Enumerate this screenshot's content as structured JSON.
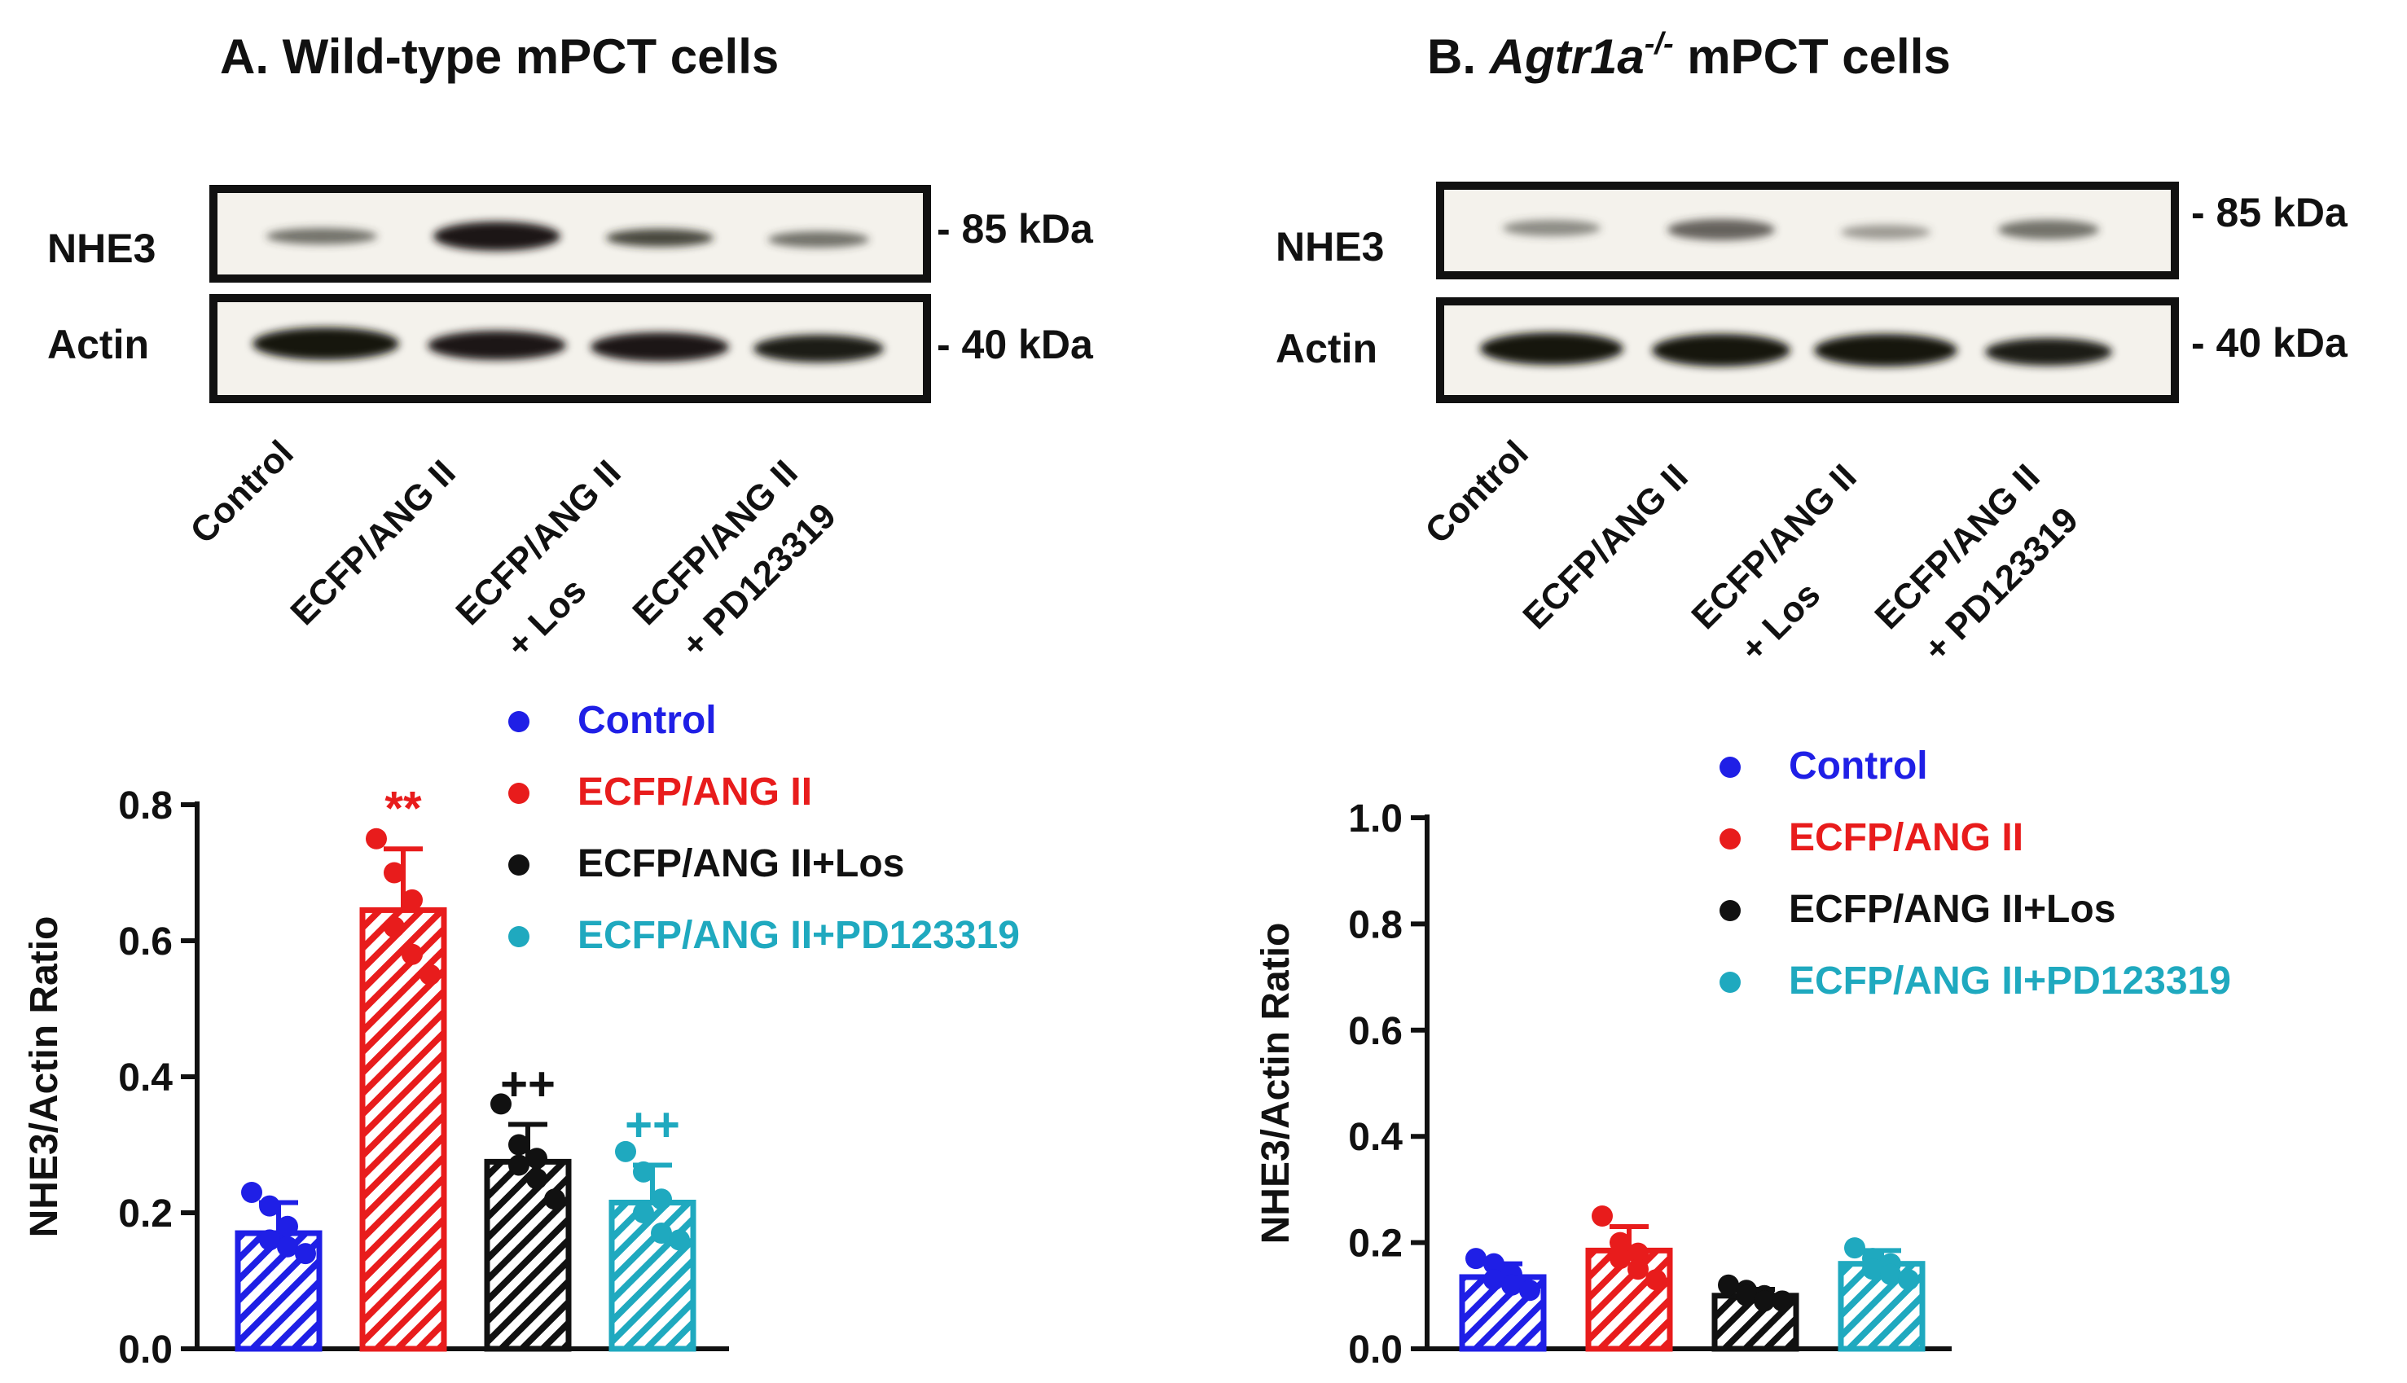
{
  "panels": [
    {
      "title_prefix": "A. Wild-type mPCT cells",
      "title_italic": "",
      "title_suffix": "",
      "blot": {
        "rows": [
          "NHE3",
          "Actin"
        ],
        "markers": [
          "- 85 kDa",
          "- 40 kDa"
        ],
        "lanes": [
          [
            "Control"
          ],
          [
            "ECFP/ANG II"
          ],
          [
            "ECFP/ANG II",
            "+ Los"
          ],
          [
            "ECFP/ANG II",
            "+ PD123319"
          ]
        ]
      }
    },
    {
      "title_prefix": "B. ",
      "title_italic": "Agtr1a",
      "title_sup": "-/-",
      "title_suffix": " mPCT cells",
      "blot": {
        "rows": [
          "NHE3",
          "Actin"
        ],
        "markers": [
          "- 85 kDa",
          "- 40 kDa"
        ],
        "lanes": [
          [
            "Control"
          ],
          [
            "ECFP/ANG II"
          ],
          [
            "ECFP/ANG II",
            "+ Los"
          ],
          [
            "ECFP/ANG II",
            "+ PD123319"
          ]
        ]
      }
    }
  ],
  "chart_data": [
    {
      "type": "bar",
      "title": "",
      "ylabel": "NHE3/Actin Ratio",
      "ylim": [
        0,
        0.8
      ],
      "yticks": [
        "0.0",
        "0.2",
        "0.4",
        "0.6",
        "0.8"
      ],
      "categories": [
        "Control",
        "ECFP/ANG II",
        "ECFP/ANG II+Los",
        "ECFP/ANG II+PD123319"
      ],
      "colors": [
        "#1f1fe6",
        "#e81c1c",
        "#111111",
        "#1fa9bf"
      ],
      "means": [
        0.17,
        0.645,
        0.275,
        0.215
      ],
      "sd": [
        0.045,
        0.09,
        0.055,
        0.055
      ],
      "points": [
        [
          0.23,
          0.21,
          0.18,
          0.16,
          0.15,
          0.14
        ],
        [
          0.75,
          0.7,
          0.66,
          0.62,
          0.58,
          0.55
        ],
        [
          0.36,
          0.3,
          0.28,
          0.27,
          0.25,
          0.22
        ],
        [
          0.29,
          0.26,
          0.22,
          0.2,
          0.17,
          0.16
        ]
      ],
      "annotations": [
        "",
        "**",
        "++",
        "++"
      ],
      "legend": [
        "Control",
        "ECFP/ANG II",
        "ECFP/ANG II+Los",
        "ECFP/ANG II+PD123319"
      ]
    },
    {
      "type": "bar",
      "title": "",
      "ylabel": "NHE3/Actin Ratio",
      "ylim": [
        0,
        1.0
      ],
      "yticks": [
        "0.0",
        "0.2",
        "0.4",
        "0.6",
        "0.8",
        "1.0"
      ],
      "categories": [
        "Control",
        "ECFP/ANG II",
        "ECFP/ANG II+Los",
        "ECFP/ANG II+PD123319"
      ],
      "colors": [
        "#1f1fe6",
        "#e81c1c",
        "#111111",
        "#1fa9bf"
      ],
      "means": [
        0.135,
        0.185,
        0.1,
        0.16
      ],
      "sd": [
        0.025,
        0.045,
        0.012,
        0.025
      ],
      "points": [
        [
          0.17,
          0.16,
          0.14,
          0.13,
          0.12,
          0.11
        ],
        [
          0.25,
          0.2,
          0.18,
          0.17,
          0.15,
          0.13
        ],
        [
          0.12,
          0.11,
          0.1,
          0.1,
          0.09,
          0.09
        ],
        [
          0.19,
          0.17,
          0.16,
          0.15,
          0.14,
          0.13
        ]
      ],
      "annotations": [
        "",
        "",
        "",
        ""
      ],
      "legend": [
        "Control",
        "ECFP/ANG II",
        "ECFP/ANG II+Los",
        "ECFP/ANG II+PD123319"
      ]
    }
  ]
}
